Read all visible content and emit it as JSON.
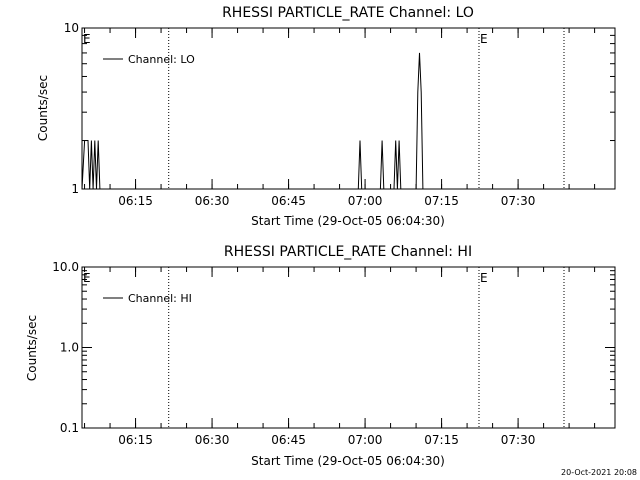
{
  "chart_data": [
    {
      "type": "line",
      "title": "RHESSI PARTICLE_RATE Channel: LO",
      "xlabel": "Start Time (29-Oct-05 06:04:30)",
      "ylabel": "Counts/sec",
      "yscale": "log",
      "ylim": [
        1,
        10
      ],
      "y_ticks": [
        "1",
        "10"
      ],
      "xlim": [
        "06:04:30",
        "07:49:00"
      ],
      "x_ticks": [
        "06:15",
        "06:30",
        "06:45",
        "07:00",
        "07:15",
        "07:30"
      ],
      "grid": false,
      "legend": "top-left",
      "series": [
        {
          "name": "Channel: LO",
          "x": [
            "06:04:30",
            "06:05:00",
            "06:05:20",
            "06:05:40",
            "06:06:00",
            "06:06:20",
            "06:06:40",
            "06:07:00",
            "06:07:20",
            "06:07:40",
            "06:08:00",
            "06:08:20",
            "06:58:40",
            "06:59:00",
            "06:59:20",
            "07:03:00",
            "07:03:20",
            "07:03:40",
            "07:05:40",
            "07:06:00",
            "07:06:20",
            "07:06:40",
            "07:07:00",
            "07:07:20",
            "07:10:00",
            "07:10:20",
            "07:10:40",
            "07:11:00",
            "07:11:20"
          ],
          "values": [
            1,
            2,
            2,
            2,
            1,
            2,
            1,
            2,
            1,
            2,
            1,
            1,
            1,
            2,
            1,
            1,
            2,
            1,
            1,
            2,
            1,
            2,
            1,
            1,
            1,
            4,
            7,
            4,
            1
          ]
        }
      ],
      "markers": [
        {
          "label": "E",
          "x": "06:04:30"
        },
        {
          "x": "06:21:30"
        },
        {
          "label": "E",
          "x": "07:22:20"
        },
        {
          "x": "07:39:00"
        }
      ]
    },
    {
      "type": "line",
      "title": "RHESSI PARTICLE_RATE Channel: HI",
      "xlabel": "Start Time (29-Oct-05 06:04:30)",
      "ylabel": "Counts/sec",
      "yscale": "log",
      "ylim": [
        0.1,
        10
      ],
      "y_ticks": [
        "0.1",
        "1.0",
        "10.0"
      ],
      "xlim": [
        "06:04:30",
        "07:49:00"
      ],
      "x_ticks": [
        "06:15",
        "06:30",
        "06:45",
        "07:00",
        "07:15",
        "07:30"
      ],
      "grid": false,
      "legend": "top-left",
      "series": [
        {
          "name": "Channel: HI",
          "x": [],
          "values": []
        }
      ],
      "markers": [
        {
          "label": "E",
          "x": "06:04:30"
        },
        {
          "x": "06:21:30"
        },
        {
          "label": "E",
          "x": "07:22:20"
        },
        {
          "x": "07:39:00"
        }
      ]
    }
  ],
  "timestamp": "20-Oct-2021 20:08"
}
